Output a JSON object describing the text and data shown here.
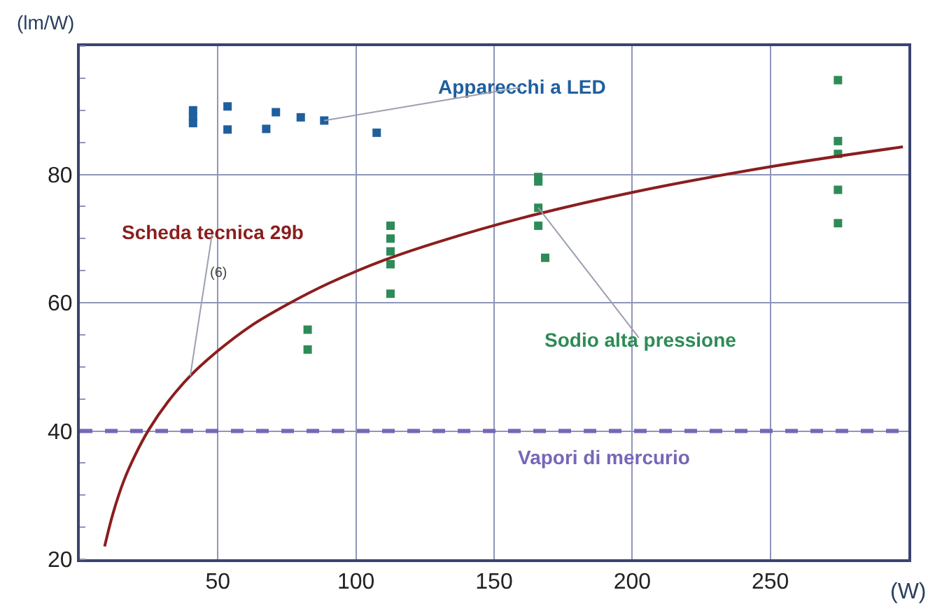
{
  "chart_data": {
    "type": "scatter",
    "ylabel": "(lm/W)",
    "xlabel": "(W)",
    "xlim": [
      0,
      300
    ],
    "xticks": [
      50,
      100,
      150,
      200,
      250
    ],
    "ylim": [
      20,
      100
    ],
    "yticks": [
      20,
      40,
      60,
      80
    ],
    "grid": true,
    "legend": false,
    "marker": "square",
    "series": [
      {
        "name": "Apparecchi a LED",
        "color": "#1f5f9e",
        "x": [
          41,
          41,
          41,
          53.5,
          53.5,
          67.5,
          71,
          80,
          88.5,
          107.5
        ],
        "values": [
          90,
          89,
          88,
          90.6,
          87,
          87.1,
          89.7,
          88.9,
          88.4,
          86.5
        ]
      },
      {
        "name": "Sodio alta pressione",
        "color": "#2e8b57",
        "x": [
          82.5,
          82.5,
          112.5,
          112.5,
          112.5,
          112.5,
          112.5,
          166,
          166,
          166,
          166,
          168.5,
          274.5,
          274.5,
          274.5,
          274.5,
          274.5
        ],
        "values": [
          55.8,
          52.7,
          72,
          70,
          68,
          66,
          61.4,
          79.6,
          78.9,
          74.8,
          72,
          67,
          94.7,
          85.2,
          83.2,
          77.6,
          72.4
        ]
      },
      {
        "name": "Scheda tecnica 29b",
        "type": "line",
        "color": "#8b1e1e",
        "line_style": "solid",
        "marker": "none",
        "x": [
          9,
          12,
          16,
          20,
          25,
          32,
          40,
          50,
          62,
          75,
          90,
          110,
          130,
          160,
          200,
          250,
          298
        ],
        "values": [
          22,
          27.1,
          32.3,
          36.2,
          40.2,
          44.6,
          48.6,
          52.5,
          56.4,
          59.7,
          63,
          66.6,
          69.5,
          73.2,
          77.2,
          81.2,
          84.3
        ]
      }
    ],
    "ref_lines": [
      {
        "axis": "y",
        "value": 40,
        "label": "Vapori di mercurio",
        "color": "#7766b8",
        "line_style": "dashed"
      }
    ],
    "annotations": [
      "(6)"
    ]
  }
}
